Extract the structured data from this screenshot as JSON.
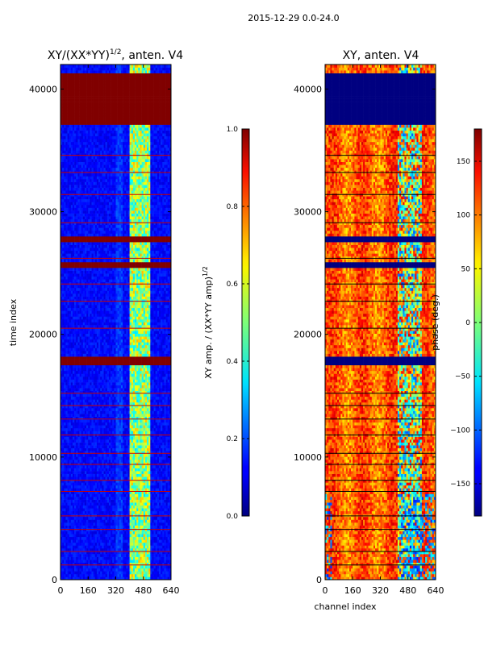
{
  "suptitle": "2015-12-29 0.0-24.0",
  "chart_data": [
    {
      "type": "heatmap",
      "title_prefix": "XY/(XX*YY)",
      "title_exp": "1/2",
      "title_suffix": ", anten. V4",
      "xlabel": "",
      "ylabel": "time index",
      "xlim": [
        0,
        640
      ],
      "ylim": [
        0,
        42000
      ],
      "xticks": [
        0,
        160,
        320,
        480,
        640
      ],
      "yticks": [
        0,
        10000,
        20000,
        30000,
        40000
      ],
      "colorscale": "jet",
      "background_level": 0.13,
      "bright_channel_range": [
        400,
        520
      ],
      "bright_level": 0.45,
      "flagged_value": 1.0,
      "flagged_time_bands": [
        [
          37000,
          41200
        ],
        [
          27500,
          28000
        ],
        [
          25400,
          25900
        ],
        [
          17400,
          18200
        ]
      ],
      "flag_lines": [
        1200,
        2300,
        4100,
        5200,
        7200,
        8100,
        9400,
        10300,
        11800,
        13100,
        14200,
        15200,
        20500,
        22700,
        24100,
        26200,
        29100,
        31400,
        33200,
        34600
      ],
      "colorbar": {
        "label_prefix": "XY amp. / (XX*YY amp)",
        "label_exp": "1/2",
        "range": [
          0.0,
          1.0
        ],
        "ticks": [
          0.0,
          0.2,
          0.4,
          0.6,
          0.8,
          1.0
        ],
        "tick_labels": [
          "0.0",
          "0.2",
          "0.4",
          "0.6",
          "0.8",
          "1.0"
        ]
      }
    },
    {
      "type": "heatmap",
      "title": "XY, anten. V4",
      "xlabel": "channel index",
      "ylabel": "",
      "xlim": [
        0,
        640
      ],
      "ylim": [
        0,
        42000
      ],
      "xticks": [
        0,
        160,
        320,
        480,
        640
      ],
      "yticks": [
        0,
        10000,
        20000,
        30000,
        40000
      ],
      "colorscale": "jet",
      "value_range": [
        -180,
        180
      ],
      "flagged_value": -180,
      "flagged_time_bands": [
        [
          37000,
          41200
        ],
        [
          27500,
          28000
        ],
        [
          25400,
          25900
        ],
        [
          17400,
          18200
        ]
      ],
      "flag_lines": [
        1200,
        2300,
        4100,
        5200,
        7200,
        8100,
        9400,
        10300,
        11800,
        13100,
        14200,
        15200,
        20500,
        22700,
        24100,
        26200,
        29100,
        31400,
        33200,
        34600
      ],
      "colorbar": {
        "label": "phase (deg.)",
        "range": [
          -180,
          180
        ],
        "ticks": [
          -150,
          -100,
          -50,
          0,
          50,
          100,
          150
        ],
        "tick_labels": [
          "−150",
          "−100",
          "−50",
          "0",
          "50",
          "100",
          "150"
        ]
      }
    }
  ]
}
